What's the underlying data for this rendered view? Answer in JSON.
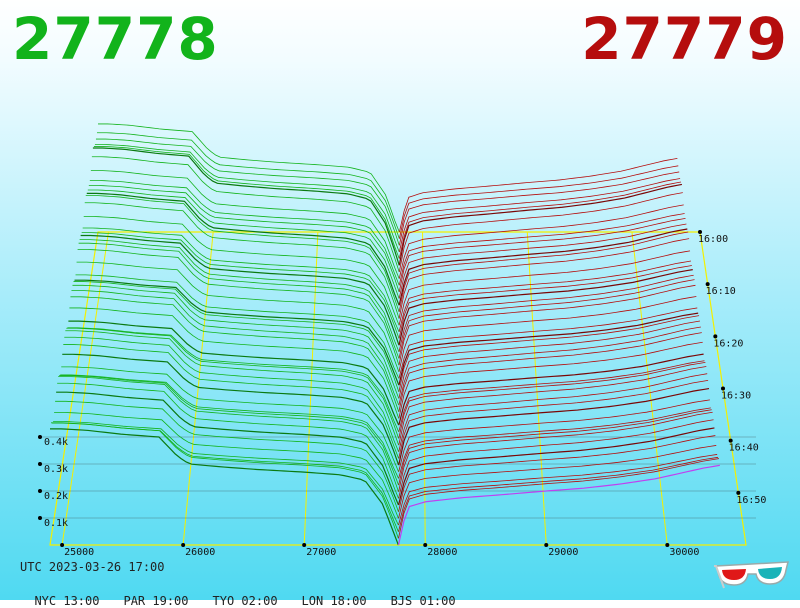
{
  "header": {
    "bid_price": "27778",
    "ask_price": "27779"
  },
  "colors": {
    "bid": "#12b31b",
    "bid_dark": "#0a7a10",
    "ask": "#b50d0d",
    "ask_dark": "#7a0606",
    "frame": "#f4f000",
    "latest_line": "#c040f0"
  },
  "footer": {
    "utc": "UTC 2023-03-26 17:00",
    "timezones": [
      "NYC 13:00",
      "PAR 19:00",
      "TYO 02:00",
      "LON 18:00",
      "BJS 01:00"
    ],
    "icon": "3d-glasses-icon"
  },
  "chart_data": {
    "type": "area",
    "description_kind": "3d-order-book-depth-history",
    "x_axis": {
      "ticks": [
        25000,
        26000,
        27000,
        28000,
        29000,
        30000
      ],
      "tick_labels": [
        "25000",
        "26000",
        "27000",
        "28000",
        "29000",
        "30000"
      ],
      "range": [
        24900,
        30650
      ]
    },
    "z_axis": {
      "tick_labels": [
        "0.1k",
        "0.2k",
        "0.3k",
        "0.4k"
      ],
      "ticks": [
        100,
        200,
        300,
        400
      ]
    },
    "time_axis": {
      "tick_labels": [
        "16:00",
        "16:10",
        "16:20",
        "16:30",
        "16:40",
        "16:50"
      ],
      "range": [
        "16:00",
        "17:00"
      ]
    },
    "mid_price": 27778.5,
    "bid_depth_profile": {
      "price": [
        25000,
        25200,
        25500,
        25800,
        25950,
        26050,
        26300,
        26600,
        27000,
        27300,
        27500,
        27650,
        27778
      ],
      "depth": [
        430,
        425,
        410,
        400,
        330,
        300,
        290,
        280,
        270,
        260,
        240,
        150,
        0
      ]
    },
    "ask_depth_profile": {
      "price": [
        27779,
        27850,
        28000,
        28300,
        28600,
        29000,
        29300,
        29600,
        29900,
        30100,
        30300,
        30500
      ],
      "depth": [
        0,
        140,
        160,
        175,
        185,
        200,
        210,
        225,
        245,
        265,
        285,
        300
      ]
    }
  }
}
